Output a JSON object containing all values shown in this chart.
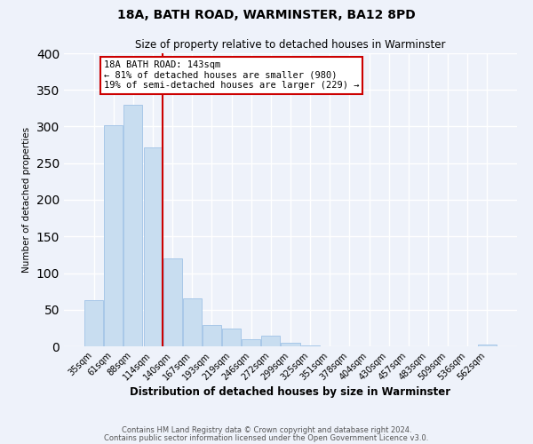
{
  "title": "18A, BATH ROAD, WARMINSTER, BA12 8PD",
  "subtitle": "Size of property relative to detached houses in Warminster",
  "xlabel": "Distribution of detached houses by size in Warminster",
  "ylabel": "Number of detached properties",
  "bar_labels": [
    "35sqm",
    "61sqm",
    "88sqm",
    "114sqm",
    "140sqm",
    "167sqm",
    "193sqm",
    "219sqm",
    "246sqm",
    "272sqm",
    "299sqm",
    "325sqm",
    "351sqm",
    "378sqm",
    "404sqm",
    "430sqm",
    "457sqm",
    "483sqm",
    "509sqm",
    "536sqm",
    "562sqm"
  ],
  "bar_values": [
    63,
    302,
    330,
    272,
    120,
    65,
    29,
    24,
    10,
    14,
    5,
    1,
    0,
    0,
    0,
    0,
    0,
    0,
    0,
    0,
    2
  ],
  "bar_color": "#c8ddf0",
  "bar_edge_color": "#a8c8e8",
  "vline_x": 3.5,
  "vline_color": "#cc0000",
  "annotation_title": "18A BATH ROAD: 143sqm",
  "annotation_line1": "← 81% of detached houses are smaller (980)",
  "annotation_line2": "19% of semi-detached houses are larger (229) →",
  "annotation_box_color": "#ffffff",
  "annotation_box_edge": "#cc0000",
  "ylim": [
    0,
    400
  ],
  "yticks": [
    0,
    50,
    100,
    150,
    200,
    250,
    300,
    350,
    400
  ],
  "footer1": "Contains HM Land Registry data © Crown copyright and database right 2024.",
  "footer2": "Contains public sector information licensed under the Open Government Licence v3.0.",
  "background_color": "#eef2fa",
  "grid_color": "#ffffff"
}
